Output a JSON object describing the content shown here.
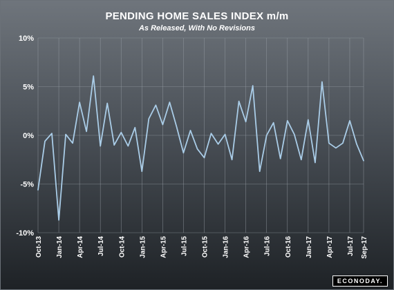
{
  "chart_data": {
    "type": "line",
    "title": "PENDING HOME SALES INDEX m/m",
    "subtitle": "As Released, With No Revisions",
    "y_ticks": [
      "10%",
      "5%",
      "0%",
      "-5%",
      "-10%"
    ],
    "y_tick_values": [
      10,
      5,
      0,
      -5,
      -10
    ],
    "ylim": [
      -10,
      10
    ],
    "x_tick_labels": [
      "Oct-13",
      "Jan-14",
      "Apr-14",
      "Jul-14",
      "Oct-14",
      "Jan-15",
      "Apr-15",
      "Jul-15",
      "Oct-15",
      "Jan-16",
      "Apr-16",
      "Jul-16",
      "Oct-16",
      "Jan-17",
      "Apr-17",
      "Jul-17",
      "Sep-17"
    ],
    "x_tick_index": [
      0,
      3,
      6,
      9,
      12,
      15,
      18,
      21,
      24,
      27,
      30,
      33,
      36,
      39,
      42,
      45,
      47
    ],
    "grid": true,
    "series": [
      {
        "color": "#aacde8",
        "x": [
          "Oct-13",
          "Nov-13",
          "Dec-13",
          "Jan-14",
          "Feb-14",
          "Mar-14",
          "Apr-14",
          "May-14",
          "Jun-14",
          "Jul-14",
          "Aug-14",
          "Sep-14",
          "Oct-14",
          "Nov-14",
          "Dec-14",
          "Jan-15",
          "Feb-15",
          "Mar-15",
          "Apr-15",
          "May-15",
          "Jun-15",
          "Jul-15",
          "Aug-15",
          "Sep-15",
          "Oct-15",
          "Nov-15",
          "Dec-15",
          "Jan-16",
          "Feb-16",
          "Mar-16",
          "Apr-16",
          "May-16",
          "Jun-16",
          "Jul-16",
          "Aug-16",
          "Sep-16",
          "Oct-16",
          "Nov-16",
          "Dec-16",
          "Jan-17",
          "Feb-17",
          "Mar-17",
          "Apr-17",
          "May-17",
          "Jun-17",
          "Jul-17",
          "Aug-17",
          "Sep-17"
        ],
        "values": [
          -5.6,
          -0.6,
          0.2,
          -8.7,
          0.1,
          -0.8,
          3.4,
          0.4,
          6.1,
          -1.1,
          3.3,
          -1.0,
          0.3,
          -1.1,
          0.8,
          -3.7,
          1.7,
          3.1,
          1.1,
          3.4,
          0.9,
          -1.8,
          0.5,
          -1.4,
          -2.3,
          0.2,
          -0.9,
          0.1,
          -2.5,
          3.5,
          1.4,
          5.1,
          -3.7,
          0.0,
          1.3,
          -2.4,
          1.5,
          0.1,
          -2.5,
          1.6,
          -2.8,
          5.5,
          -0.8,
          -1.3,
          -0.8,
          1.5,
          -0.9,
          -2.6
        ]
      }
    ]
  },
  "brand": {
    "logo_text": "ECONODAY."
  }
}
